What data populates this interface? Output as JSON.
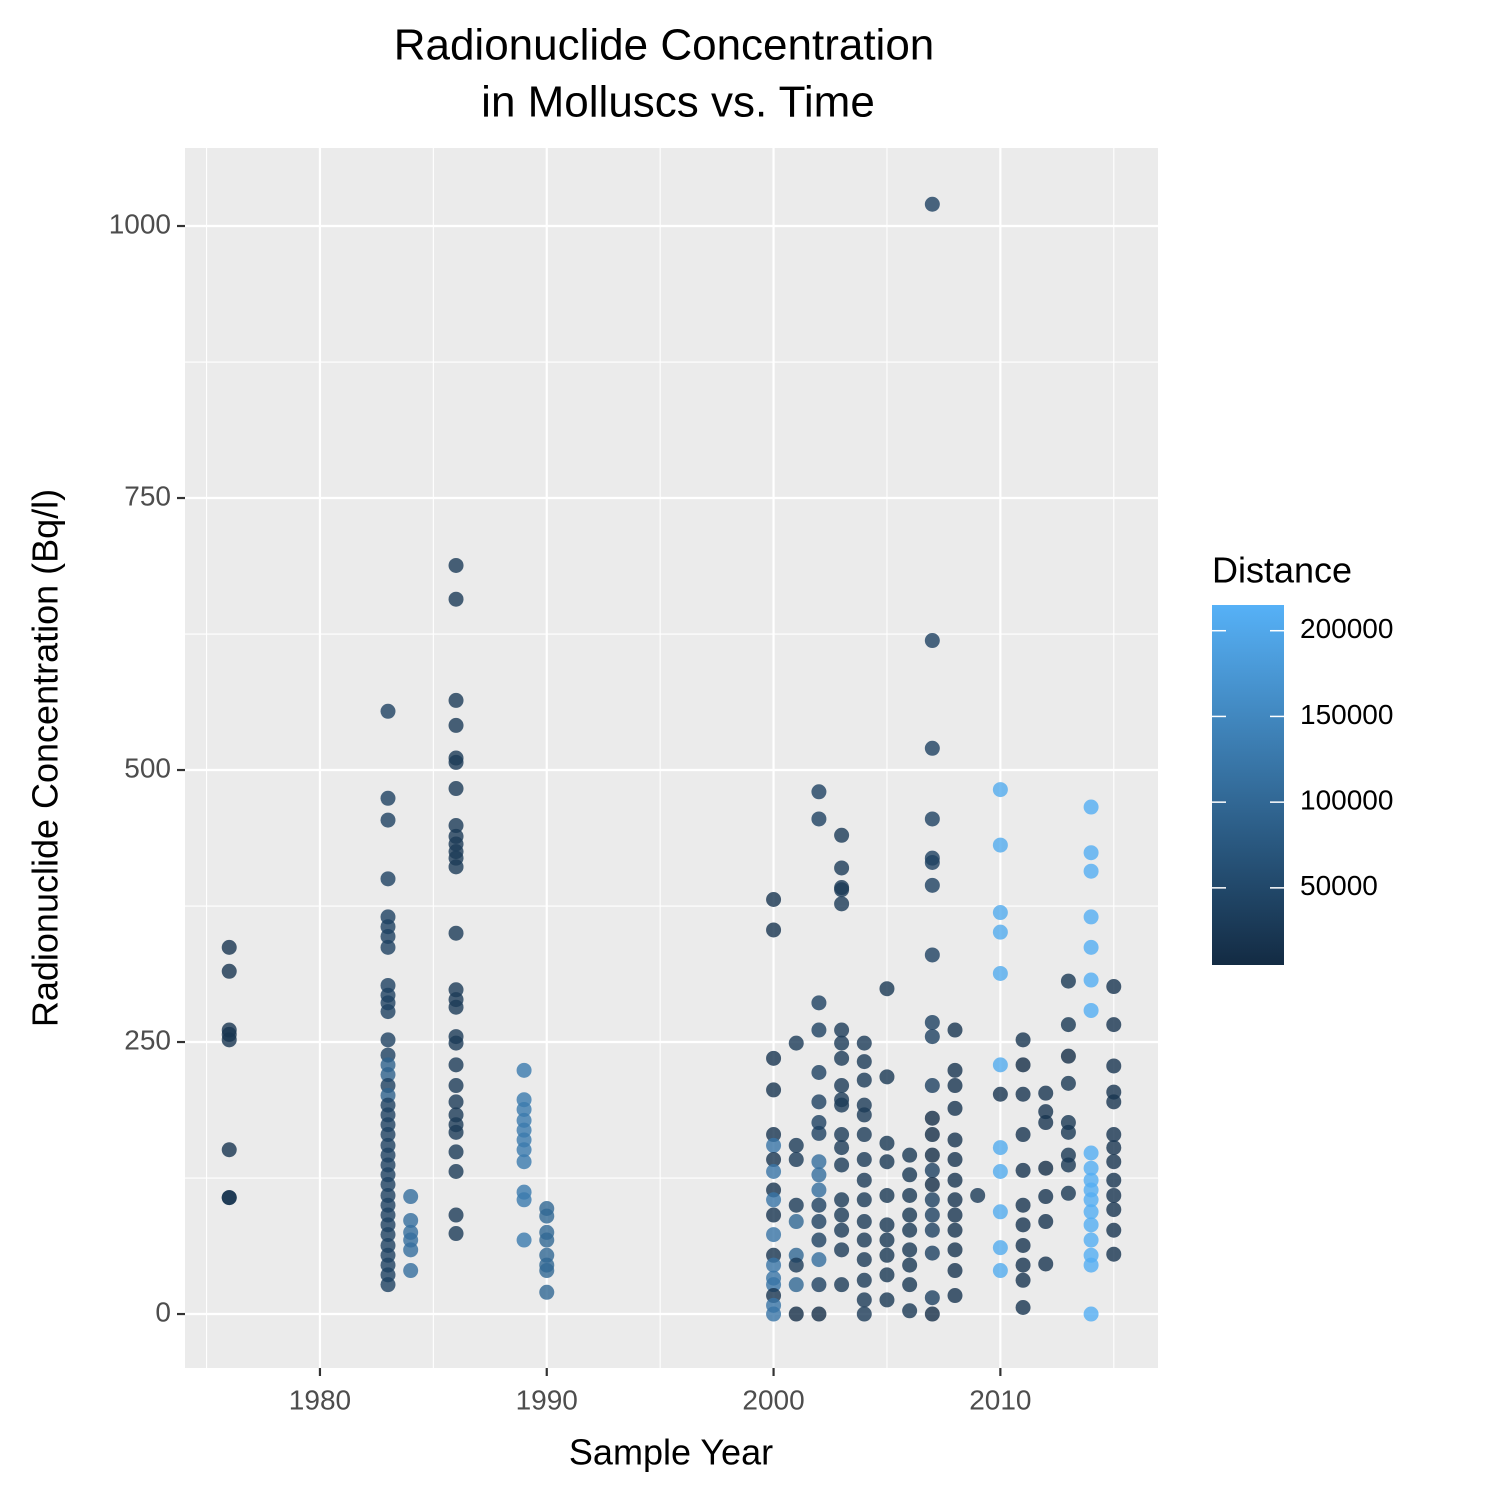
{
  "chart_data": {
    "type": "scatter",
    "title": [
      "Radionuclide Concentration",
      "in Molluscs vs. Time"
    ],
    "x_label": "Sample Year",
    "y_label": "Radionuclide Concentration (Bq/l)",
    "legend_title": "Distance",
    "xlim": [
      1974.05,
      2016.95
    ],
    "xticks": [
      1980,
      1990,
      2000,
      2010
    ],
    "xminorticks": [
      1975,
      1985,
      1995,
      2005,
      2015
    ],
    "ylim": [
      -49.6,
      1071.7
    ],
    "yticks": [
      0,
      250,
      500,
      750,
      1000
    ],
    "yminorticks": [
      125,
      375,
      625,
      875
    ],
    "grid": true,
    "legend_position": "right",
    "color_range": [
      "#132B43",
      "#56B1F7"
    ],
    "color_lim": [
      5000,
      215000
    ],
    "color_ticks": [
      50000,
      100000,
      150000,
      200000
    ],
    "series": [
      {
        "x": [
          1976,
          1976,
          1976,
          1976,
          1976,
          1976,
          1976,
          1976,
          1983,
          1983,
          1983,
          1983,
          1983,
          1983,
          1983,
          1983,
          1983,
          1983,
          1983,
          1983,
          1983,
          1983,
          1983,
          1983,
          1983,
          1983,
          1983,
          1983,
          1983,
          1983,
          1983,
          1983,
          1983,
          1983,
          1983,
          1983,
          1983,
          1983,
          1983,
          1983,
          1983,
          1983,
          1983,
          1983,
          1983,
          1984,
          1984,
          1984,
          1984,
          1984,
          1984,
          1986,
          1986,
          1986,
          1986,
          1986,
          1986,
          1986,
          1986,
          1986,
          1986,
          1986,
          1986,
          1986,
          1986,
          1986,
          1986,
          1986,
          1986,
          1986,
          1986,
          1986,
          1986,
          1986,
          1986,
          1986,
          1986,
          1986,
          1986,
          1986,
          1989,
          1989,
          1989,
          1989,
          1989,
          1989,
          1989,
          1989,
          1989,
          1989,
          1989,
          1990,
          1990,
          1990,
          1990,
          1990,
          1990,
          1990,
          1990,
          2000,
          2000,
          2000,
          2000,
          2000,
          2000,
          2000,
          2000,
          2000,
          2000,
          2000,
          2000,
          2000,
          2000,
          2000,
          2000,
          2000,
          2000,
          2000,
          2001,
          2001,
          2001,
          2001,
          2001,
          2001,
          2001,
          2001,
          2001,
          2002,
          2002,
          2002,
          2002,
          2002,
          2002,
          2002,
          2002,
          2002,
          2002,
          2002,
          2002,
          2002,
          2002,
          2002,
          2002,
          2002,
          2003,
          2003,
          2003,
          2003,
          2003,
          2003,
          2003,
          2003,
          2003,
          2003,
          2003,
          2003,
          2003,
          2003,
          2003,
          2003,
          2003,
          2003,
          2003,
          2004,
          2004,
          2004,
          2004,
          2004,
          2004,
          2004,
          2004,
          2004,
          2004,
          2004,
          2004,
          2004,
          2004,
          2004,
          2005,
          2005,
          2005,
          2005,
          2005,
          2005,
          2005,
          2005,
          2005,
          2005,
          2006,
          2006,
          2006,
          2006,
          2006,
          2006,
          2006,
          2006,
          2006,
          2007,
          2007,
          2007,
          2007,
          2007,
          2007,
          2007,
          2007,
          2007,
          2007,
          2007,
          2007,
          2007,
          2007,
          2007,
          2007,
          2007,
          2007,
          2007,
          2007,
          2007,
          2007,
          2008,
          2008,
          2008,
          2008,
          2008,
          2008,
          2008,
          2008,
          2008,
          2008,
          2008,
          2008,
          2008,
          2009,
          2010,
          2010,
          2010,
          2010,
          2010,
          2010,
          2010,
          2010,
          2010,
          2010,
          2010,
          2010,
          2011,
          2011,
          2011,
          2011,
          2011,
          2011,
          2011,
          2011,
          2011,
          2011,
          2011,
          2012,
          2012,
          2012,
          2012,
          2012,
          2012,
          2012,
          2013,
          2013,
          2013,
          2013,
          2013,
          2013,
          2013,
          2013,
          2013,
          2014,
          2014,
          2014,
          2014,
          2014,
          2014,
          2014,
          2014,
          2014,
          2014,
          2014,
          2014,
          2014,
          2014,
          2014,
          2014,
          2014,
          2014,
          2015,
          2015,
          2015,
          2015,
          2015,
          2015,
          2015,
          2015,
          2015,
          2015,
          2015,
          2015,
          2015
        ],
        "values": [
          337,
          315,
          261,
          257,
          252,
          151,
          107,
          107,
          554,
          474,
          454,
          400,
          365,
          356,
          347,
          337,
          302,
          293,
          286,
          278,
          252,
          238,
          229,
          220,
          210,
          201,
          192,
          183,
          174,
          165,
          155,
          146,
          137,
          128,
          119,
          109,
          100,
          91,
          82,
          73,
          63,
          54,
          45,
          36,
          27,
          108,
          86,
          75,
          68,
          59,
          40,
          688,
          657,
          564,
          541,
          511,
          507,
          483,
          449,
          439,
          432,
          425,
          419,
          411,
          350,
          298,
          289,
          282,
          255,
          249,
          229,
          210,
          195,
          183,
          174,
          167,
          149,
          131,
          91,
          74,
          224,
          197,
          188,
          178,
          169,
          160,
          151,
          140,
          112,
          105,
          68,
          97,
          90,
          75,
          68,
          54,
          45,
          40,
          20,
          381,
          353,
          235,
          206,
          165,
          155,
          142,
          131,
          114,
          105,
          91,
          73,
          54,
          45,
          33,
          27,
          17,
          8,
          0,
          249,
          155,
          142,
          100,
          85,
          54,
          45,
          27,
          0,
          480,
          455,
          286,
          261,
          222,
          195,
          176,
          166,
          140,
          128,
          114,
          100,
          85,
          68,
          50,
          27,
          0,
          440,
          410,
          392,
          390,
          377,
          261,
          249,
          235,
          210,
          197,
          192,
          165,
          153,
          137,
          105,
          91,
          77,
          59,
          27,
          249,
          232,
          215,
          192,
          183,
          165,
          142,
          123,
          105,
          85,
          68,
          50,
          31,
          13,
          0,
          299,
          218,
          157,
          140,
          109,
          82,
          68,
          54,
          36,
          13,
          146,
          128,
          109,
          91,
          77,
          59,
          45,
          27,
          3,
          1020,
          619,
          520,
          455,
          419,
          415,
          394,
          330,
          268,
          255,
          210,
          180,
          165,
          146,
          132,
          119,
          105,
          91,
          77,
          56,
          15,
          0,
          261,
          224,
          210,
          189,
          160,
          142,
          123,
          105,
          91,
          77,
          59,
          40,
          17,
          109,
          482,
          431,
          369,
          351,
          313,
          229,
          202,
          153,
          131,
          94,
          61,
          40,
          252,
          229,
          202,
          165,
          132,
          100,
          82,
          63,
          45,
          31,
          6,
          203,
          186,
          176,
          134,
          108,
          85,
          46,
          306,
          266,
          237,
          212,
          176,
          167,
          146,
          137,
          111,
          466,
          424,
          407,
          365,
          337,
          307,
          279,
          148,
          134,
          123,
          114,
          105,
          94,
          82,
          68,
          54,
          45,
          0,
          301,
          266,
          228,
          204,
          195,
          165,
          153,
          140,
          123,
          109,
          96,
          77,
          55
        ],
        "distance": [
          20000,
          20000,
          20000,
          20000,
          20000,
          20000,
          20000,
          20000,
          40000,
          40000,
          40000,
          40000,
          40000,
          40000,
          40000,
          40000,
          40000,
          40000,
          40000,
          40000,
          40000,
          40000,
          90000,
          90000,
          40000,
          90000,
          40000,
          40000,
          40000,
          40000,
          40000,
          40000,
          40000,
          40000,
          40000,
          40000,
          40000,
          40000,
          40000,
          40000,
          40000,
          40000,
          40000,
          40000,
          40000,
          110000,
          110000,
          110000,
          110000,
          110000,
          110000,
          30000,
          30000,
          30000,
          30000,
          30000,
          30000,
          30000,
          30000,
          30000,
          30000,
          30000,
          30000,
          30000,
          30000,
          30000,
          30000,
          30000,
          30000,
          30000,
          30000,
          30000,
          30000,
          30000,
          30000,
          30000,
          30000,
          30000,
          30000,
          30000,
          130000,
          130000,
          130000,
          130000,
          130000,
          130000,
          130000,
          130000,
          130000,
          130000,
          130000,
          100000,
          100000,
          100000,
          100000,
          100000,
          100000,
          100000,
          100000,
          20000,
          20000,
          20000,
          20000,
          20000,
          120000,
          20000,
          120000,
          20000,
          120000,
          20000,
          120000,
          20000,
          120000,
          120000,
          120000,
          20000,
          120000,
          120000,
          30000,
          30000,
          30000,
          30000,
          100000,
          100000,
          30000,
          100000,
          10000,
          40000,
          40000,
          40000,
          40000,
          40000,
          40000,
          40000,
          40000,
          110000,
          110000,
          110000,
          40000,
          40000,
          40000,
          110000,
          40000,
          10000,
          30000,
          30000,
          30000,
          30000,
          30000,
          30000,
          30000,
          30000,
          30000,
          30000,
          30000,
          30000,
          30000,
          30000,
          30000,
          30000,
          30000,
          30000,
          30000,
          30000,
          30000,
          30000,
          30000,
          30000,
          30000,
          30000,
          30000,
          30000,
          30000,
          30000,
          30000,
          30000,
          30000,
          30000,
          25000,
          25000,
          25000,
          25000,
          25000,
          25000,
          25000,
          25000,
          25000,
          25000,
          25000,
          25000,
          25000,
          25000,
          25000,
          25000,
          25000,
          25000,
          25000,
          40000,
          40000,
          40000,
          40000,
          40000,
          40000,
          40000,
          40000,
          40000,
          40000,
          40000,
          10000,
          10000,
          10000,
          40000,
          10000,
          40000,
          40000,
          40000,
          40000,
          40000,
          10000,
          20000,
          20000,
          20000,
          20000,
          20000,
          20000,
          20000,
          20000,
          20000,
          20000,
          20000,
          20000,
          20000,
          30000,
          205000,
          205000,
          205000,
          205000,
          205000,
          205000,
          20000,
          205000,
          205000,
          205000,
          205000,
          205000,
          20000,
          10000,
          20000,
          20000,
          20000,
          20000,
          20000,
          20000,
          20000,
          20000,
          20000,
          20000,
          20000,
          20000,
          10000,
          20000,
          20000,
          20000,
          25000,
          25000,
          10000,
          25000,
          25000,
          25000,
          25000,
          25000,
          25000,
          210000,
          210000,
          210000,
          210000,
          210000,
          210000,
          210000,
          210000,
          210000,
          210000,
          210000,
          210000,
          210000,
          210000,
          210000,
          210000,
          210000,
          210000,
          20000,
          20000,
          20000,
          20000,
          20000,
          20000,
          20000,
          20000,
          20000,
          20000,
          20000,
          20000,
          20000
        ]
      }
    ]
  }
}
